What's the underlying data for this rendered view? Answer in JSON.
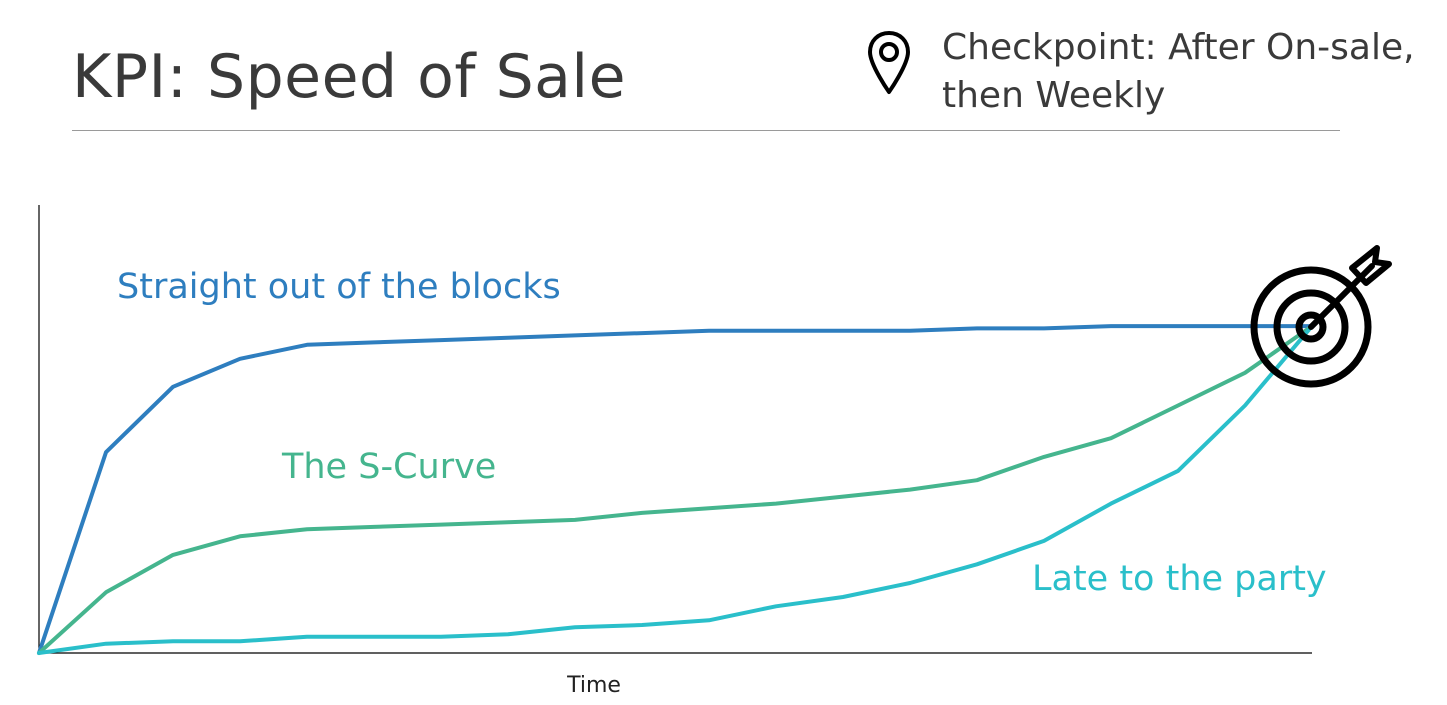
{
  "header": {
    "title": "KPI: Speed of Sale",
    "checkpoint_line1": "Checkpoint: After On-sale,",
    "checkpoint_line2": "then Weekly"
  },
  "icons": {
    "pin": "map-pin-icon",
    "target": "target-arrow-icon"
  },
  "colors": {
    "straight": "#2e7ebf",
    "scurve": "#45b58e",
    "late": "#2abfca",
    "axis": "#000000"
  },
  "chart_data": {
    "type": "line",
    "xlabel": "Time",
    "ylabel": "",
    "title": "",
    "xlim": [
      0,
      19
    ],
    "ylim": [
      0,
      100
    ],
    "series": [
      {
        "name": "Straight out of the blocks",
        "color": "#2e7ebf",
        "x": [
          0,
          1,
          2,
          3,
          4,
          5,
          6,
          7,
          8,
          9,
          10,
          11,
          12,
          13,
          14,
          15,
          16,
          17,
          18,
          19
        ],
        "values": [
          0,
          43,
          57,
          63,
          66,
          66.5,
          67,
          67.5,
          68,
          68.5,
          69,
          69,
          69,
          69,
          69.5,
          69.5,
          70,
          70,
          70,
          70
        ]
      },
      {
        "name": "The S-Curve",
        "color": "#45b58e",
        "x": [
          0,
          1,
          2,
          3,
          4,
          5,
          6,
          7,
          8,
          9,
          10,
          11,
          12,
          13,
          14,
          15,
          16,
          17,
          18,
          19
        ],
        "values": [
          0,
          13,
          21,
          25,
          26.5,
          27,
          27.5,
          28,
          28.5,
          30,
          31,
          32,
          33.5,
          35,
          37,
          42,
          46,
          53,
          60,
          70
        ]
      },
      {
        "name": "Late to the party",
        "color": "#2abfca",
        "x": [
          0,
          1,
          2,
          3,
          4,
          5,
          6,
          7,
          8,
          9,
          10,
          11,
          12,
          13,
          14,
          15,
          16,
          17,
          18,
          19
        ],
        "values": [
          0,
          2,
          2.5,
          2.5,
          3.5,
          3.5,
          3.5,
          4,
          5.5,
          6,
          7,
          10,
          12,
          15,
          19,
          24,
          32,
          39,
          53,
          70
        ]
      }
    ],
    "annotations": [
      {
        "text": "Straight out of the blocks",
        "series": "Straight out of the blocks"
      },
      {
        "text": "The S-Curve",
        "series": "The S-Curve"
      },
      {
        "text": "Late to the party",
        "series": "Late to the party"
      }
    ]
  }
}
